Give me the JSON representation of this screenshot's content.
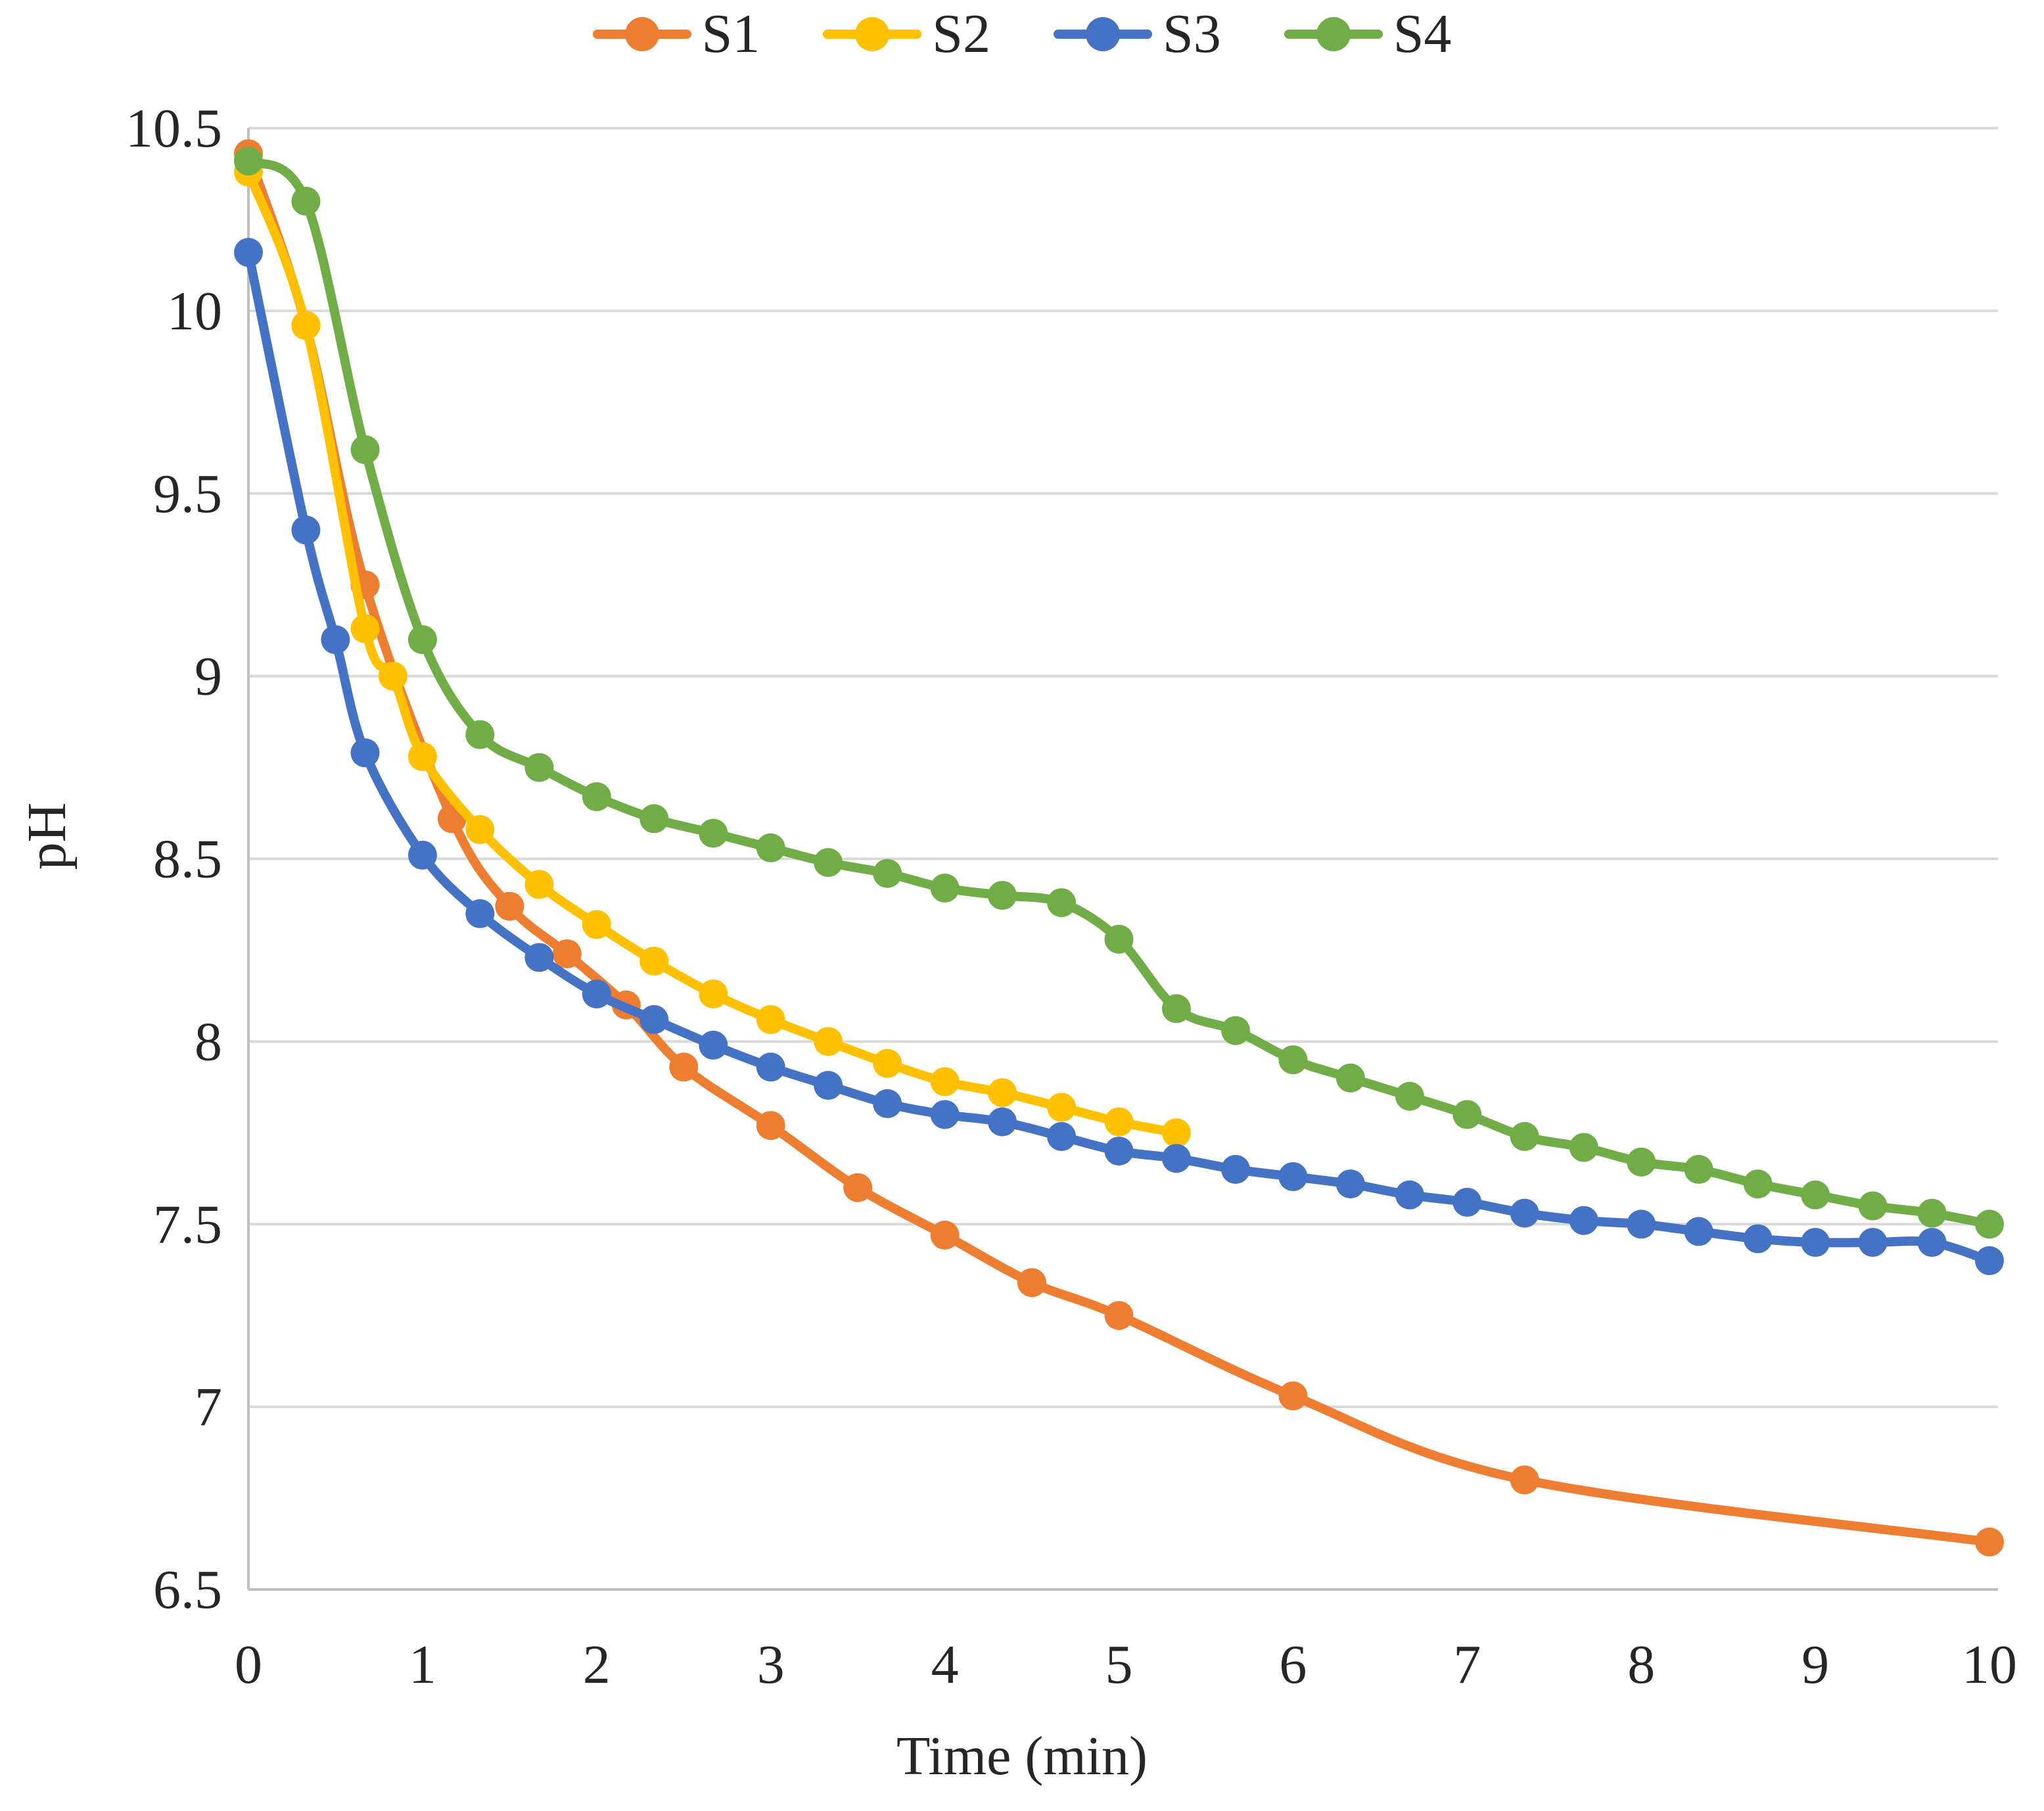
{
  "legend": {
    "items": [
      {
        "label": "S1",
        "color": "#ED7D31"
      },
      {
        "label": "S2",
        "color": "#FFC000"
      },
      {
        "label": "S3",
        "color": "#4472C4"
      },
      {
        "label": "S4",
        "color": "#70AD47"
      }
    ]
  },
  "axes": {
    "x_title": "Time (min)",
    "y_title": "pH",
    "x_tick_labels": [
      "0",
      "1",
      "2",
      "3",
      "4",
      "5",
      "6",
      "7",
      "8",
      "9",
      "10"
    ],
    "y_tick_labels": [
      "10.5",
      "10",
      "9.5",
      "9",
      "8.5",
      "8",
      "7.5",
      "7",
      "6.5"
    ]
  },
  "chart_data": {
    "type": "line",
    "title": "",
    "xlabel": "Time (min)",
    "ylabel": "pH",
    "xlim": [
      0,
      10
    ],
    "ylim": [
      6.5,
      10.5
    ],
    "x_ticks": [
      0,
      1,
      2,
      3,
      4,
      5,
      6,
      7,
      8,
      9,
      10
    ],
    "y_ticks": [
      10.5,
      10,
      9.5,
      9,
      8.5,
      8,
      7.5,
      7,
      6.5
    ],
    "grid": true,
    "legend_position": "top-center",
    "marker": "circle",
    "series": [
      {
        "name": "S1",
        "color": "#ED7D31",
        "points": [
          [
            0,
            10.43
          ],
          [
            0.33,
            9.96
          ],
          [
            0.67,
            9.25
          ],
          [
            1.17,
            8.61
          ],
          [
            1.5,
            8.37
          ],
          [
            1.83,
            8.24
          ],
          [
            2.17,
            8.1
          ],
          [
            2.5,
            7.93
          ],
          [
            3,
            7.77
          ],
          [
            3.5,
            7.6
          ],
          [
            4,
            7.47
          ],
          [
            4.5,
            7.34
          ],
          [
            5,
            7.25
          ],
          [
            6,
            7.03
          ],
          [
            7.33,
            6.8
          ],
          [
            10,
            6.63
          ]
        ]
      },
      {
        "name": "S2",
        "color": "#FFC000",
        "points": [
          [
            0,
            10.38
          ],
          [
            0.33,
            9.96
          ],
          [
            0.67,
            9.13
          ],
          [
            0.83,
            9.0
          ],
          [
            1,
            8.78
          ],
          [
            1.33,
            8.58
          ],
          [
            1.67,
            8.43
          ],
          [
            2,
            8.32
          ],
          [
            2.33,
            8.22
          ],
          [
            2.67,
            8.13
          ],
          [
            3,
            8.06
          ],
          [
            3.33,
            8.0
          ],
          [
            3.67,
            7.94
          ],
          [
            4,
            7.89
          ],
          [
            4.33,
            7.86
          ],
          [
            4.67,
            7.82
          ],
          [
            5,
            7.78
          ],
          [
            5.33,
            7.75
          ]
        ]
      },
      {
        "name": "S3",
        "color": "#4472C4",
        "points": [
          [
            0,
            10.16
          ],
          [
            0.33,
            9.4
          ],
          [
            0.5,
            9.1
          ],
          [
            0.67,
            8.79
          ],
          [
            1,
            8.51
          ],
          [
            1.33,
            8.35
          ],
          [
            1.67,
            8.23
          ],
          [
            2,
            8.13
          ],
          [
            2.33,
            8.06
          ],
          [
            2.67,
            7.99
          ],
          [
            3,
            7.93
          ],
          [
            3.33,
            7.88
          ],
          [
            3.67,
            7.83
          ],
          [
            4,
            7.8
          ],
          [
            4.33,
            7.78
          ],
          [
            4.67,
            7.74
          ],
          [
            5,
            7.7
          ],
          [
            5.33,
            7.68
          ],
          [
            5.67,
            7.65
          ],
          [
            6,
            7.63
          ],
          [
            6.33,
            7.61
          ],
          [
            6.67,
            7.58
          ],
          [
            7,
            7.56
          ],
          [
            7.33,
            7.53
          ],
          [
            7.67,
            7.51
          ],
          [
            8,
            7.5
          ],
          [
            8.33,
            7.48
          ],
          [
            8.67,
            7.46
          ],
          [
            9,
            7.45
          ],
          [
            9.33,
            7.45
          ],
          [
            9.67,
            7.45
          ],
          [
            10,
            7.4
          ]
        ]
      },
      {
        "name": "S4",
        "color": "#70AD47",
        "points": [
          [
            0,
            10.41
          ],
          [
            0.33,
            10.3
          ],
          [
            0.67,
            9.62
          ],
          [
            1,
            9.1
          ],
          [
            1.33,
            8.84
          ],
          [
            1.67,
            8.75
          ],
          [
            2,
            8.67
          ],
          [
            2.33,
            8.61
          ],
          [
            2.67,
            8.57
          ],
          [
            3,
            8.53
          ],
          [
            3.33,
            8.49
          ],
          [
            3.67,
            8.46
          ],
          [
            4,
            8.42
          ],
          [
            4.33,
            8.4
          ],
          [
            4.67,
            8.38
          ],
          [
            5,
            8.28
          ],
          [
            5.33,
            8.09
          ],
          [
            5.67,
            8.03
          ],
          [
            6,
            7.95
          ],
          [
            6.33,
            7.9
          ],
          [
            6.67,
            7.85
          ],
          [
            7,
            7.8
          ],
          [
            7.33,
            7.74
          ],
          [
            7.67,
            7.71
          ],
          [
            8,
            7.67
          ],
          [
            8.33,
            7.65
          ],
          [
            8.67,
            7.61
          ],
          [
            9,
            7.58
          ],
          [
            9.33,
            7.55
          ],
          [
            9.67,
            7.53
          ],
          [
            10,
            7.5
          ]
        ]
      }
    ]
  },
  "style": {
    "gridline_color": "#D9D9D9",
    "axis_line_color": "#BFBFBF",
    "text_color": "#262626"
  }
}
